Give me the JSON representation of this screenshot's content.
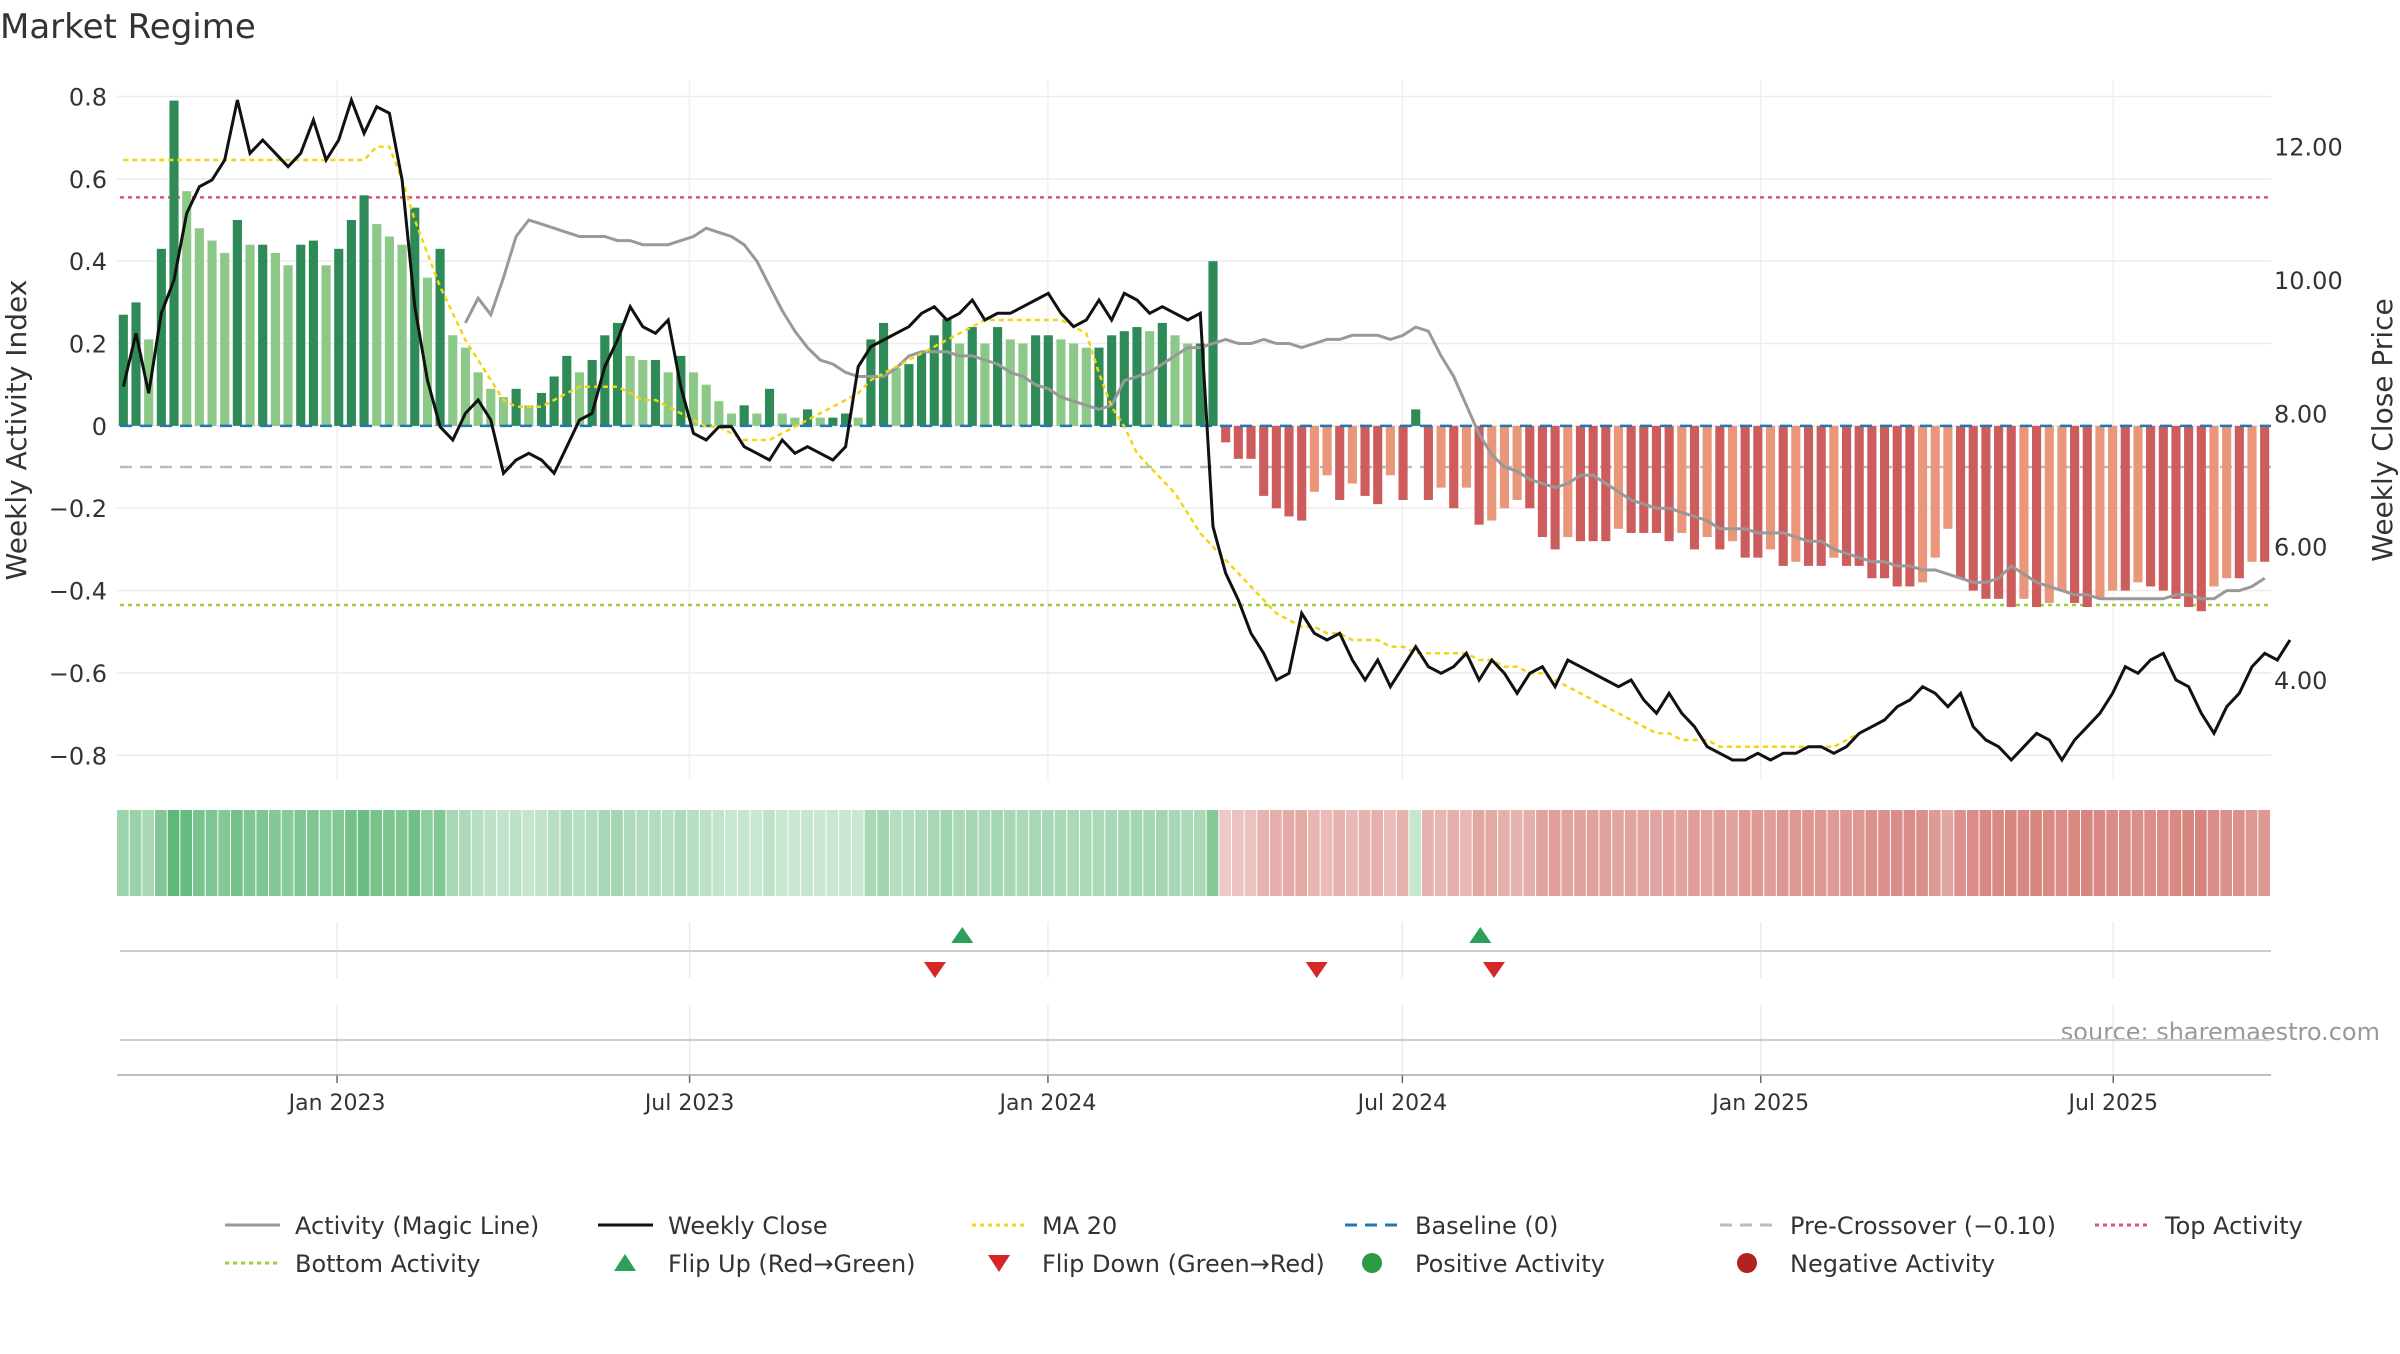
{
  "chart_data": {
    "type": "bar",
    "title": "Market Regime",
    "ylabel": "Weekly Activity Index",
    "y2label": "Weekly Close Price",
    "ylim": [
      -0.86,
      0.84
    ],
    "y2lim": [
      2.5,
      13.0
    ],
    "yticks": [
      "0.8",
      "0.6",
      "0.4",
      "0.2",
      "0",
      "−0.2",
      "−0.4",
      "−0.6",
      "−0.8"
    ],
    "y2ticks": [
      "12.00",
      "10.00",
      "8.00",
      "6.00",
      "4.00"
    ],
    "xticks": [
      "Jan 2023",
      "Jul 2023",
      "Jan 2024",
      "Jul 2024",
      "Jan 2025",
      "Jul 2025"
    ],
    "xtick_dates": [
      "2023-01-01",
      "2023-07-01",
      "2024-01-01",
      "2024-07-01",
      "2025-01-01",
      "2025-07-01"
    ],
    "x_range": [
      "2022-09-10",
      "2025-09-20"
    ],
    "source": "source: sharemaestro.com",
    "grid": true,
    "legend_position": "bottom",
    "reference_lines": {
      "baseline": 0,
      "pre_crossover": -0.1,
      "top_activity": 0.555,
      "bottom_activity": -0.435
    },
    "colors": {
      "pos_dark": "#2e8b57",
      "pos_light": "#8cc887",
      "neg_dark": "#cd5c5c",
      "neg_light": "#e9967a",
      "close": "#111111",
      "ma": "#f2d50f",
      "magic": "#999999",
      "baseline": "#1f77b4",
      "pre": "#bbbbbb",
      "top": "#e0507a",
      "bottom": "#9acd32",
      "flip_up": "#2ca05a",
      "flip_down": "#d62728"
    },
    "series": [
      {
        "name": "Weekly Activity Index",
        "values": [
          0.27,
          0.3,
          0.21,
          0.43,
          0.79,
          0.57,
          0.48,
          0.45,
          0.42,
          0.5,
          0.44,
          0.44,
          0.42,
          0.39,
          0.44,
          0.45,
          0.39,
          0.43,
          0.5,
          0.56,
          0.49,
          0.46,
          0.44,
          0.53,
          0.36,
          0.43,
          0.22,
          0.19,
          0.13,
          0.09,
          0.07,
          0.09,
          0.05,
          0.08,
          0.12,
          0.17,
          0.13,
          0.16,
          0.22,
          0.25,
          0.17,
          0.16,
          0.16,
          0.13,
          0.17,
          0.13,
          0.1,
          0.06,
          0.03,
          0.05,
          0.03,
          0.09,
          0.03,
          0.02,
          0.04,
          0.02,
          0.02,
          0.03,
          0.02,
          0.21,
          0.25,
          0.14,
          0.15,
          0.18,
          0.22,
          0.26,
          0.2,
          0.24,
          0.2,
          0.24,
          0.21,
          0.2,
          0.22,
          0.22,
          0.21,
          0.2,
          0.19,
          0.19,
          0.22,
          0.23,
          0.24,
          0.23,
          0.25,
          0.22,
          0.2,
          0.2,
          0.4,
          -0.04,
          -0.08,
          -0.08,
          -0.17,
          -0.2,
          -0.22,
          -0.23,
          -0.16,
          -0.12,
          -0.18,
          -0.14,
          -0.17,
          -0.19,
          -0.12,
          -0.18,
          0.04,
          -0.18,
          -0.15,
          -0.2,
          -0.15,
          -0.24,
          -0.23,
          -0.2,
          -0.18,
          -0.2,
          -0.27,
          -0.3,
          -0.27,
          -0.28,
          -0.28,
          -0.28,
          -0.25,
          -0.26,
          -0.26,
          -0.26,
          -0.28,
          -0.26,
          -0.3,
          -0.27,
          -0.3,
          -0.28,
          -0.32,
          -0.32,
          -0.3,
          -0.34,
          -0.33,
          -0.34,
          -0.34,
          -0.32,
          -0.34,
          -0.34,
          -0.37,
          -0.37,
          -0.39,
          -0.39,
          -0.38,
          -0.32,
          -0.25,
          -0.37,
          -0.4,
          -0.42,
          -0.42,
          -0.44,
          -0.42,
          -0.44,
          -0.43,
          -0.4,
          -0.43,
          -0.44,
          -0.42,
          -0.4,
          -0.4,
          -0.38,
          -0.39,
          -0.4,
          -0.42,
          -0.44,
          -0.45,
          -0.39,
          -0.37,
          -0.37,
          -0.33,
          -0.33
        ]
      },
      {
        "name": "Weekly Close",
        "values": [
          8.4,
          9.2,
          8.3,
          9.5,
          10.0,
          11.0,
          11.4,
          11.5,
          11.8,
          12.7,
          11.9,
          12.1,
          11.9,
          11.7,
          11.9,
          12.4,
          11.8,
          12.1,
          12.7,
          12.2,
          12.6,
          12.5,
          11.5,
          9.6,
          8.5,
          7.8,
          7.6,
          8.0,
          8.2,
          7.9,
          7.1,
          7.3,
          7.4,
          7.3,
          7.1,
          7.5,
          7.9,
          8.0,
          8.7,
          9.1,
          9.6,
          9.3,
          9.2,
          9.4,
          8.4,
          7.7,
          7.6,
          7.8,
          7.8,
          7.5,
          7.4,
          7.3,
          7.6,
          7.4,
          7.5,
          7.4,
          7.3,
          7.5,
          8.7,
          9.0,
          9.1,
          9.2,
          9.3,
          9.5,
          9.6,
          9.4,
          9.5,
          9.7,
          9.4,
          9.5,
          9.5,
          9.6,
          9.7,
          9.8,
          9.5,
          9.3,
          9.4,
          9.7,
          9.4,
          9.8,
          9.7,
          9.5,
          9.6,
          9.5,
          9.4,
          9.5,
          6.3,
          5.6,
          5.2,
          4.7,
          4.4,
          4.0,
          4.1,
          5.0,
          4.7,
          4.6,
          4.7,
          4.3,
          4.0,
          4.3,
          3.9,
          4.2,
          4.5,
          4.2,
          4.1,
          4.2,
          4.4,
          4.0,
          4.3,
          4.1,
          3.8,
          4.1,
          4.2,
          3.9,
          4.3,
          4.2,
          4.1,
          4.0,
          3.9,
          4.0,
          3.7,
          3.5,
          3.8,
          3.5,
          3.3,
          3.0,
          2.9,
          2.8,
          2.8,
          2.9,
          2.8,
          2.9,
          2.9,
          3.0,
          3.0,
          2.9,
          3.0,
          3.2,
          3.3,
          3.4,
          3.6,
          3.7,
          3.9,
          3.8,
          3.6,
          3.8,
          3.3,
          3.1,
          3.0,
          2.8,
          3.0,
          3.2,
          3.1,
          2.8,
          3.1,
          3.3,
          3.5,
          3.8,
          4.2,
          4.1,
          4.3,
          4.4,
          4.0,
          3.9,
          3.5,
          3.2,
          3.6,
          3.8,
          4.2,
          4.4,
          4.3,
          4.6
        ]
      },
      {
        "name": "MA 20",
        "values": [
          11.8,
          11.8,
          11.8,
          11.8,
          11.8,
          11.8,
          11.8,
          11.8,
          11.8,
          11.8,
          11.8,
          11.8,
          11.8,
          11.8,
          11.8,
          11.8,
          11.8,
          11.8,
          11.8,
          11.8,
          12.0,
          12.0,
          11.5,
          10.9,
          10.4,
          9.9,
          9.5,
          9.1,
          8.8,
          8.5,
          8.2,
          8.1,
          8.1,
          8.1,
          8.2,
          8.3,
          8.4,
          8.4,
          8.4,
          8.4,
          8.3,
          8.2,
          8.2,
          8.1,
          8.0,
          7.9,
          7.8,
          7.8,
          7.7,
          7.6,
          7.6,
          7.6,
          7.7,
          7.8,
          7.9,
          8.0,
          8.1,
          8.2,
          8.3,
          8.5,
          8.6,
          8.7,
          8.8,
          8.9,
          9.0,
          9.1,
          9.2,
          9.3,
          9.4,
          9.4,
          9.4,
          9.4,
          9.4,
          9.4,
          9.4,
          9.3,
          9.2,
          8.6,
          8.1,
          7.8,
          7.4,
          7.2,
          7.0,
          6.8,
          6.5,
          6.2,
          6.0,
          5.8,
          5.6,
          5.4,
          5.2,
          5.0,
          4.9,
          4.8,
          4.8,
          4.7,
          4.7,
          4.6,
          4.6,
          4.6,
          4.5,
          4.5,
          4.4,
          4.4,
          4.4,
          4.4,
          4.4,
          4.3,
          4.3,
          4.2,
          4.2,
          4.1,
          4.1,
          4.0,
          3.9,
          3.8,
          3.7,
          3.6,
          3.5,
          3.4,
          3.3,
          3.2,
          3.2,
          3.1,
          3.1,
          3.1,
          3.0,
          3.0,
          3.0,
          3.0,
          3.0,
          3.0,
          3.0,
          3.0,
          3.0,
          3.0,
          3.1,
          3.2,
          3.3,
          3.4,
          3.6
        ]
      },
      {
        "name": "Activity (Magic Line)",
        "values": [
          0.25,
          0.31,
          0.27,
          0.36,
          0.46,
          0.5,
          0.49,
          0.48,
          0.47,
          0.46,
          0.46,
          0.46,
          0.45,
          0.45,
          0.44,
          0.44,
          0.44,
          0.45,
          0.46,
          0.48,
          0.47,
          0.46,
          0.44,
          0.4,
          0.34,
          0.28,
          0.23,
          0.19,
          0.16,
          0.15,
          0.13,
          0.12,
          0.12,
          0.12,
          0.14,
          0.17,
          0.18,
          0.18,
          0.18,
          0.17,
          0.17,
          0.16,
          0.15,
          0.13,
          0.12,
          0.1,
          0.09,
          0.07,
          0.06,
          0.05,
          0.04,
          0.05,
          0.11,
          0.12,
          0.13,
          0.15,
          0.17,
          0.19,
          0.19,
          0.2,
          0.21,
          0.2,
          0.2,
          0.21,
          0.2,
          0.2,
          0.19,
          0.2,
          0.21,
          0.21,
          0.22,
          0.22,
          0.22,
          0.21,
          0.22,
          0.24,
          0.23,
          0.17,
          0.12,
          0.05,
          -0.02,
          -0.07,
          -0.1,
          -0.11,
          -0.13,
          -0.14,
          -0.15,
          -0.14,
          -0.12,
          -0.12,
          -0.14,
          -0.16,
          -0.18,
          -0.19,
          -0.2,
          -0.2,
          -0.21,
          -0.22,
          -0.23,
          -0.25,
          -0.25,
          -0.25,
          -0.26,
          -0.26,
          -0.26,
          -0.27,
          -0.28,
          -0.28,
          -0.3,
          -0.31,
          -0.32,
          -0.33,
          -0.33,
          -0.34,
          -0.34,
          -0.35,
          -0.35,
          -0.36,
          -0.37,
          -0.38,
          -0.38,
          -0.37,
          -0.34,
          -0.36,
          -0.38,
          -0.39,
          -0.4,
          -0.41,
          -0.41,
          -0.42,
          -0.42,
          -0.42,
          -0.42,
          -0.42,
          -0.42,
          -0.41,
          -0.41,
          -0.42,
          -0.42,
          -0.4,
          -0.4,
          -0.39,
          -0.37
        ]
      }
    ],
    "flips": {
      "up": [
        "2023-11-18",
        "2024-08-10"
      ],
      "down": [
        "2023-11-04",
        "2024-05-18",
        "2024-08-17"
      ]
    },
    "legend": [
      {
        "label": "Activity (Magic Line)",
        "kind": "line",
        "color": "#999999",
        "dash": ""
      },
      {
        "label": "Weekly Close",
        "kind": "line",
        "color": "#111111",
        "dash": ""
      },
      {
        "label": "MA 20",
        "kind": "line",
        "color": "#f2d50f",
        "dash": "4,4"
      },
      {
        "label": "Baseline (0)",
        "kind": "line",
        "color": "#1f77b4",
        "dash": "12,8"
      },
      {
        "label": "Pre-Crossover (−0.10)",
        "kind": "line",
        "color": "#bbbbbb",
        "dash": "12,8"
      },
      {
        "label": "Top Activity",
        "kind": "line",
        "color": "#e0507a",
        "dash": "4,4"
      },
      {
        "label": "Bottom Activity",
        "kind": "line",
        "color": "#9acd32",
        "dash": "4,4"
      },
      {
        "label": "Flip Up (Red→Green)",
        "kind": "tri-up",
        "color": "#2ca05a",
        "dash": ""
      },
      {
        "label": "Flip Down (Green→Red)",
        "kind": "tri-down",
        "color": "#d62728",
        "dash": ""
      },
      {
        "label": "Positive Activity",
        "kind": "dot",
        "color": "#2e9c45",
        "dash": ""
      },
      {
        "label": "Negative Activity",
        "kind": "dot",
        "color": "#b22222",
        "dash": ""
      }
    ]
  }
}
